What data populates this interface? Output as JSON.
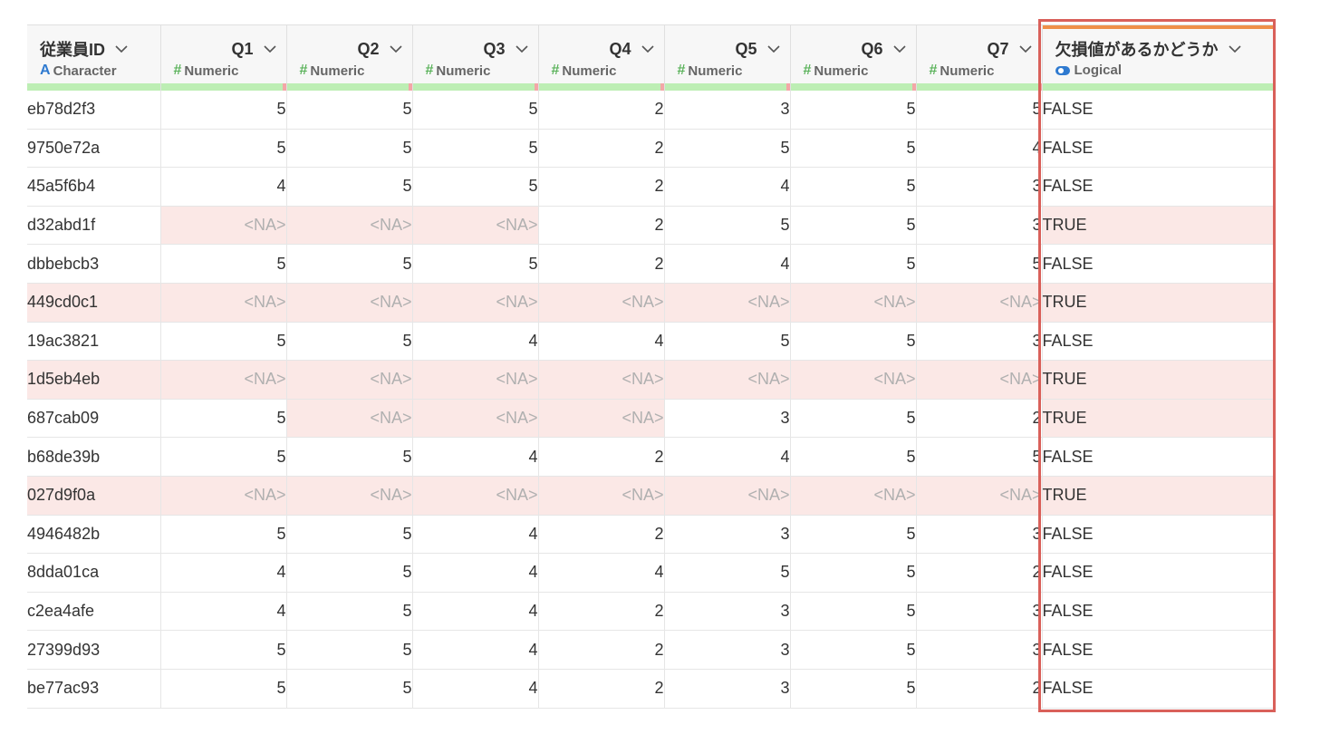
{
  "columns": [
    {
      "name": "従業員ID",
      "type": "Character",
      "type_icon": "A"
    },
    {
      "name": "Q1",
      "type": "Numeric",
      "type_icon": "#"
    },
    {
      "name": "Q2",
      "type": "Numeric",
      "type_icon": "#"
    },
    {
      "name": "Q3",
      "type": "Numeric",
      "type_icon": "#"
    },
    {
      "name": "Q4",
      "type": "Numeric",
      "type_icon": "#"
    },
    {
      "name": "Q5",
      "type": "Numeric",
      "type_icon": "#"
    },
    {
      "name": "Q6",
      "type": "Numeric",
      "type_icon": "#"
    },
    {
      "name": "Q7",
      "type": "Numeric",
      "type_icon": "#"
    },
    {
      "name": "欠損値があるかどうか",
      "type": "Logical",
      "type_icon": "toggle"
    }
  ],
  "rows": [
    [
      "eb78d2f3",
      "5",
      "5",
      "5",
      "2",
      "3",
      "5",
      "5",
      "FALSE"
    ],
    [
      "9750e72a",
      "5",
      "5",
      "5",
      "2",
      "5",
      "5",
      "4",
      "FALSE"
    ],
    [
      "45a5f6b4",
      "4",
      "5",
      "5",
      "2",
      "4",
      "5",
      "3",
      "FALSE"
    ],
    [
      "d32abd1f",
      "<NA>",
      "<NA>",
      "<NA>",
      "2",
      "5",
      "5",
      "3",
      "TRUE"
    ],
    [
      "dbbebcb3",
      "5",
      "5",
      "5",
      "2",
      "4",
      "5",
      "5",
      "FALSE"
    ],
    [
      "449cd0c1",
      "<NA>",
      "<NA>",
      "<NA>",
      "<NA>",
      "<NA>",
      "<NA>",
      "<NA>",
      "TRUE"
    ],
    [
      "19ac3821",
      "5",
      "5",
      "4",
      "4",
      "5",
      "5",
      "3",
      "FALSE"
    ],
    [
      "1d5eb4eb",
      "<NA>",
      "<NA>",
      "<NA>",
      "<NA>",
      "<NA>",
      "<NA>",
      "<NA>",
      "TRUE"
    ],
    [
      "687cab09",
      "5",
      "<NA>",
      "<NA>",
      "<NA>",
      "3",
      "5",
      "2",
      "TRUE"
    ],
    [
      "b68de39b",
      "5",
      "5",
      "4",
      "2",
      "4",
      "5",
      "5",
      "FALSE"
    ],
    [
      "027d9f0a",
      "<NA>",
      "<NA>",
      "<NA>",
      "<NA>",
      "<NA>",
      "<NA>",
      "<NA>",
      "TRUE"
    ],
    [
      "4946482b",
      "5",
      "5",
      "4",
      "2",
      "3",
      "5",
      "3",
      "FALSE"
    ],
    [
      "8dda01ca",
      "4",
      "5",
      "4",
      "4",
      "5",
      "5",
      "2",
      "FALSE"
    ],
    [
      "c2ea4afe",
      "4",
      "5",
      "4",
      "2",
      "3",
      "5",
      "3",
      "FALSE"
    ],
    [
      "27399d93",
      "5",
      "5",
      "4",
      "2",
      "3",
      "5",
      "3",
      "FALSE"
    ],
    [
      "be77ac93",
      "5",
      "5",
      "4",
      "2",
      "3",
      "5",
      "2",
      "FALSE"
    ]
  ],
  "colors": {
    "highlight_border": "#d9605a",
    "missing_bg": "#fbe8e6",
    "quality_bar": "#bdeeb4",
    "quality_missing": "#f3a7a7",
    "selected_column_bar": "#ef8f48",
    "character_icon": "#2f7ad0",
    "numeric_icon": "#5cb35c"
  },
  "icons": {
    "column_menu": "chevron-down-icon",
    "character_type": "character-type-icon",
    "numeric_type": "numeric-type-icon",
    "logical_type": "logical-toggle-icon"
  }
}
